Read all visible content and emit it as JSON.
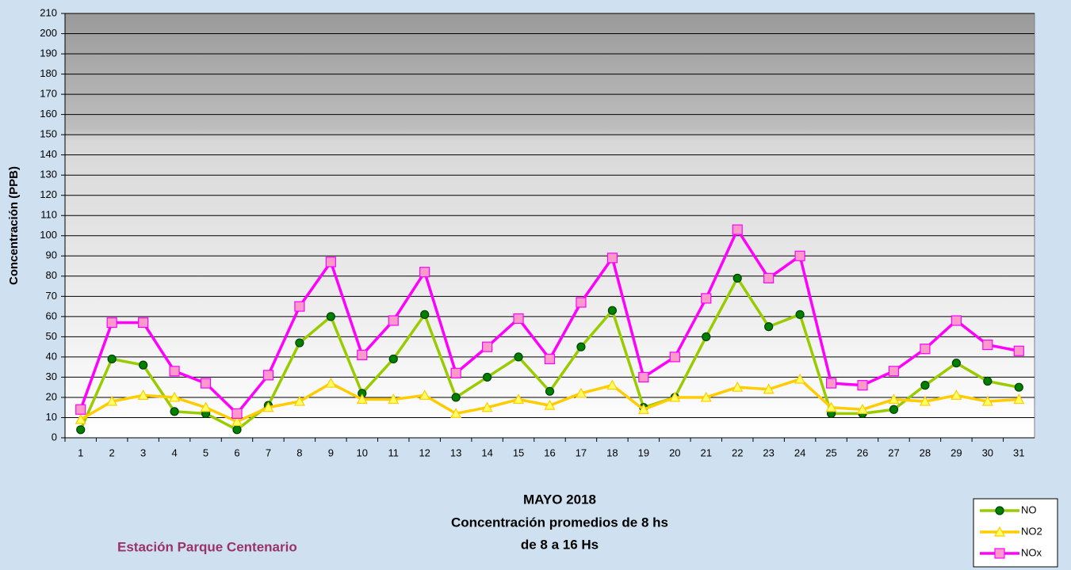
{
  "chart_data": {
    "type": "line",
    "title": "MAYO 2018",
    "subtitle": [
      "Concentración promedios de 8 hs",
      "de 8 a 16 Hs"
    ],
    "station": "Estación Parque Centenario",
    "y_label": "Concentración (PPB)",
    "categories": [
      "1",
      "2",
      "3",
      "4",
      "5",
      "6",
      "7",
      "8",
      "9",
      "10",
      "11",
      "12",
      "13",
      "14",
      "15",
      "16",
      "17",
      "18",
      "19",
      "20",
      "21",
      "22",
      "23",
      "24",
      "25",
      "26",
      "27",
      "28",
      "29",
      "30",
      "31"
    ],
    "series": [
      {
        "name": "NO",
        "color": "#99cc00",
        "marker_color": "#008000",
        "marker": "circle",
        "values": [
          4,
          39,
          36,
          13,
          12,
          4,
          16,
          47,
          60,
          22,
          39,
          61,
          20,
          30,
          40,
          23,
          45,
          63,
          15,
          20,
          50,
          79,
          55,
          61,
          12,
          12,
          14,
          26,
          37,
          28,
          25
        ]
      },
      {
        "name": "NO2",
        "color": "#ffcc00",
        "marker_color": "#ffff66",
        "marker": "triangle",
        "values": [
          9,
          18,
          21,
          20,
          15,
          8,
          15,
          18,
          27,
          19,
          19,
          21,
          12,
          15,
          19,
          16,
          22,
          26,
          14,
          20,
          20,
          25,
          24,
          29,
          15,
          14,
          19,
          18,
          21,
          18,
          19
        ]
      },
      {
        "name": "NOx",
        "color": "#ff00ff",
        "marker_color": "#ff99cc",
        "marker": "square",
        "values": [
          14,
          57,
          57,
          33,
          27,
          12,
          31,
          65,
          87,
          41,
          58,
          82,
          32,
          45,
          59,
          39,
          67,
          89,
          30,
          40,
          69,
          103,
          79,
          90,
          27,
          26,
          33,
          44,
          58,
          46,
          43
        ]
      }
    ],
    "ylim": [
      0,
      210
    ],
    "yticks": [
      0,
      10,
      20,
      30,
      40,
      50,
      60,
      70,
      80,
      90,
      100,
      110,
      120,
      130,
      140,
      150,
      160,
      170,
      180,
      190,
      200,
      210
    ],
    "grid": true,
    "legend": "bottom-right"
  }
}
